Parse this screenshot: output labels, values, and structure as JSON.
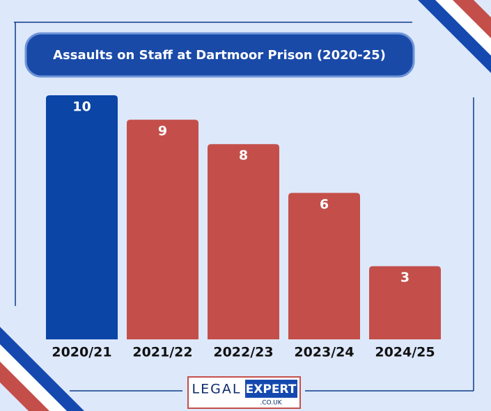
{
  "chart_data": {
    "type": "bar",
    "title": "Assaults on Staff at Dartmoor Prison (2020-25)",
    "categories": [
      "2020/21",
      "2021/22",
      "2022/23",
      "2023/24",
      "2024/25"
    ],
    "values": [
      10,
      9,
      8,
      6,
      3
    ],
    "colors": [
      "#0b45a6",
      "#c44f4a",
      "#c44f4a",
      "#c44f4a",
      "#c44f4a"
    ],
    "ylim": [
      0,
      10
    ],
    "grid": false
  },
  "logo": {
    "left": "LEGAL",
    "right": "EXPERT",
    "suffix": ".CO.UK"
  }
}
